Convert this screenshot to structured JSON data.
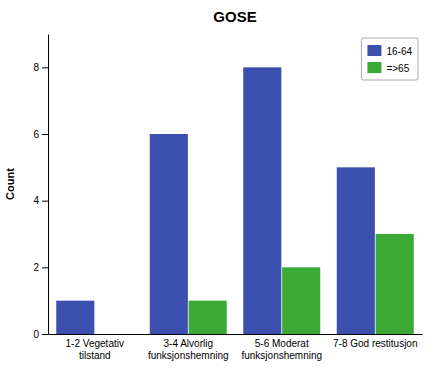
{
  "chart_data": {
    "type": "bar",
    "title": "GOSE",
    "ylabel": "Count",
    "categories": [
      "1-2 Vegetativ\ntilstand",
      "3-4 Alvorlig\nfunksjonshemning",
      "5-6 Moderat\nfunksjonshemning",
      "7-8 God restitusjon"
    ],
    "series": [
      {
        "name": "16-64",
        "color": "#3c50b0",
        "values": [
          1,
          6,
          8,
          5
        ]
      },
      {
        "name": "=>65",
        "color": "#3aaa35",
        "values": [
          0,
          1,
          2,
          3
        ]
      }
    ],
    "ylim": [
      0,
      9.0
    ],
    "yticks": [
      0,
      2,
      4,
      6,
      8
    ],
    "grid": false,
    "legend": "upper right"
  }
}
